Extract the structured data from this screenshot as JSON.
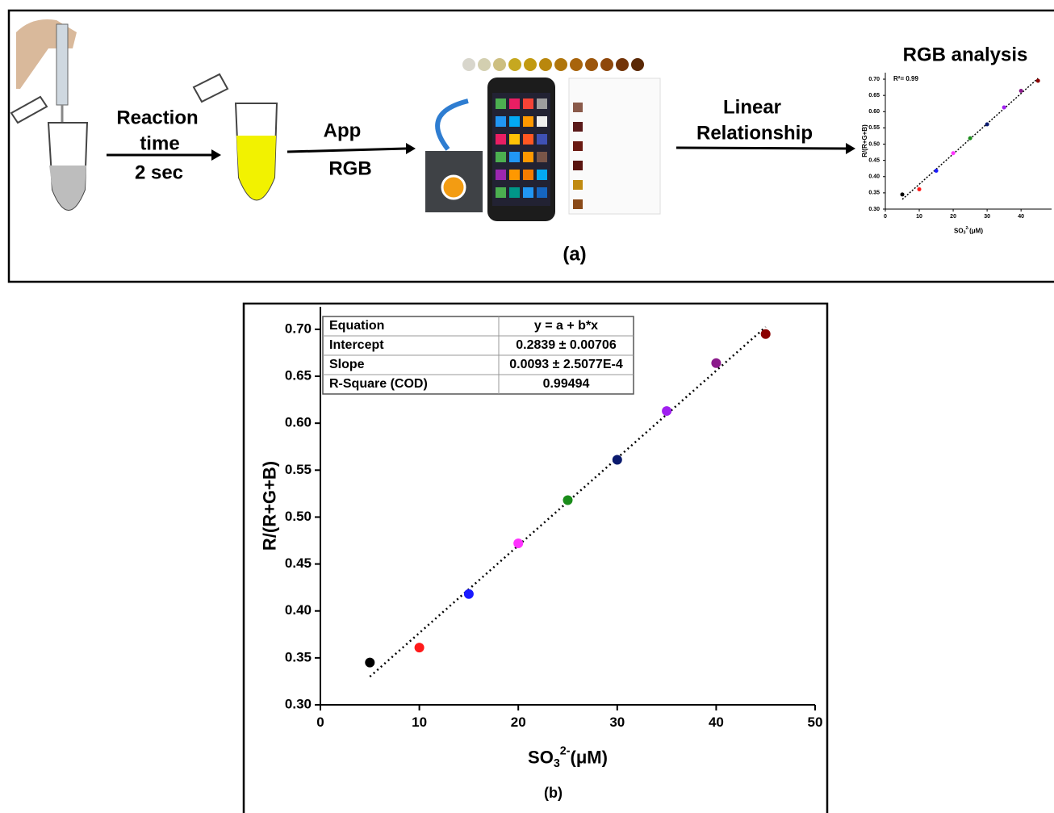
{
  "scheme": {
    "reaction": [
      "Reaction",
      "time"
    ],
    "duration": "2 sec",
    "app": [
      "App",
      "RGB"
    ],
    "relationship": [
      "Linear",
      "Relationship"
    ],
    "caption": "(a)"
  },
  "chart_data": [
    {
      "type": "scatter",
      "title": "RGB analysis",
      "annotation": "R²= 0.99",
      "y_label": "R/(R+G+B)",
      "x_label": {
        "text": "SO",
        "sub": "3",
        "sup": "2-",
        "unit": "(μM)"
      },
      "x": [
        5,
        10,
        15,
        20,
        25,
        30,
        35,
        40,
        45
      ],
      "values": [
        0.345,
        0.361,
        0.418,
        0.472,
        0.518,
        0.561,
        0.613,
        0.664,
        0.695
      ],
      "colors": [
        "#000000",
        "#ff1a1a",
        "#1a1aff",
        "#ff33ff",
        "#1a8c1a",
        "#0a1a6e",
        "#a020f0",
        "#8b1a8b",
        "#8b0000"
      ],
      "fit_line": {
        "x": [
          5,
          45
        ],
        "values": [
          0.33,
          0.7025
        ]
      },
      "xlim": [
        0,
        49
      ],
      "ylim": [
        0.3,
        0.72
      ],
      "xticks": [
        0,
        10,
        20,
        30,
        40
      ],
      "yticks": [
        {
          "value": 0.3,
          "label": "0.30"
        },
        {
          "value": 0.35,
          "label": "0.35"
        },
        {
          "value": 0.4,
          "label": "0.40"
        },
        {
          "value": 0.45,
          "label": "0.45"
        },
        {
          "value": 0.5,
          "label": "0.50"
        },
        {
          "value": 0.55,
          "label": "0.55"
        },
        {
          "value": 0.6,
          "label": "0.60"
        },
        {
          "value": 0.65,
          "label": "0.65"
        },
        {
          "value": 0.7,
          "label": "0.70"
        }
      ]
    },
    {
      "type": "scatter",
      "caption": "(b)",
      "y_label": "R/(R+G+B)",
      "x_label": {
        "text": "SO",
        "sub": "3",
        "sup": "2-",
        "unit": "(μM)"
      },
      "x": [
        5,
        10,
        15,
        20,
        25,
        30,
        35,
        40,
        45
      ],
      "values": [
        0.345,
        0.361,
        0.418,
        0.472,
        0.518,
        0.561,
        0.613,
        0.664,
        0.695
      ],
      "colors": [
        "#000000",
        "#ff1a1a",
        "#1a1aff",
        "#ff33ff",
        "#1a8c1a",
        "#0a1a6e",
        "#a020f0",
        "#8b1a8b",
        "#8b0000"
      ],
      "fit_line": {
        "x": [
          5,
          45
        ],
        "values": [
          0.33,
          0.7025
        ]
      },
      "table": {
        "rows": [
          [
            "Equation",
            "y = a + b*x"
          ],
          [
            "Intercept",
            "0.2839 ± 0.00706"
          ],
          [
            "Slope",
            "0.0093 ± 2.5077E-4"
          ],
          [
            "R-Square (COD)",
            "0.99494"
          ]
        ]
      },
      "xlim": [
        0,
        50
      ],
      "ylim": [
        0.3,
        0.724
      ],
      "xticks": [
        0,
        10,
        20,
        30,
        40,
        50
      ],
      "yticks": [
        {
          "value": 0.3,
          "label": "0.30"
        },
        {
          "value": 0.35,
          "label": "0.35"
        },
        {
          "value": 0.4,
          "label": "0.40"
        },
        {
          "value": 0.45,
          "label": "0.45"
        },
        {
          "value": 0.5,
          "label": "0.50"
        },
        {
          "value": 0.55,
          "label": "0.55"
        },
        {
          "value": 0.6,
          "label": "0.60"
        },
        {
          "value": 0.65,
          "label": "0.65"
        },
        {
          "value": 0.7,
          "label": "0.70"
        }
      ]
    }
  ]
}
